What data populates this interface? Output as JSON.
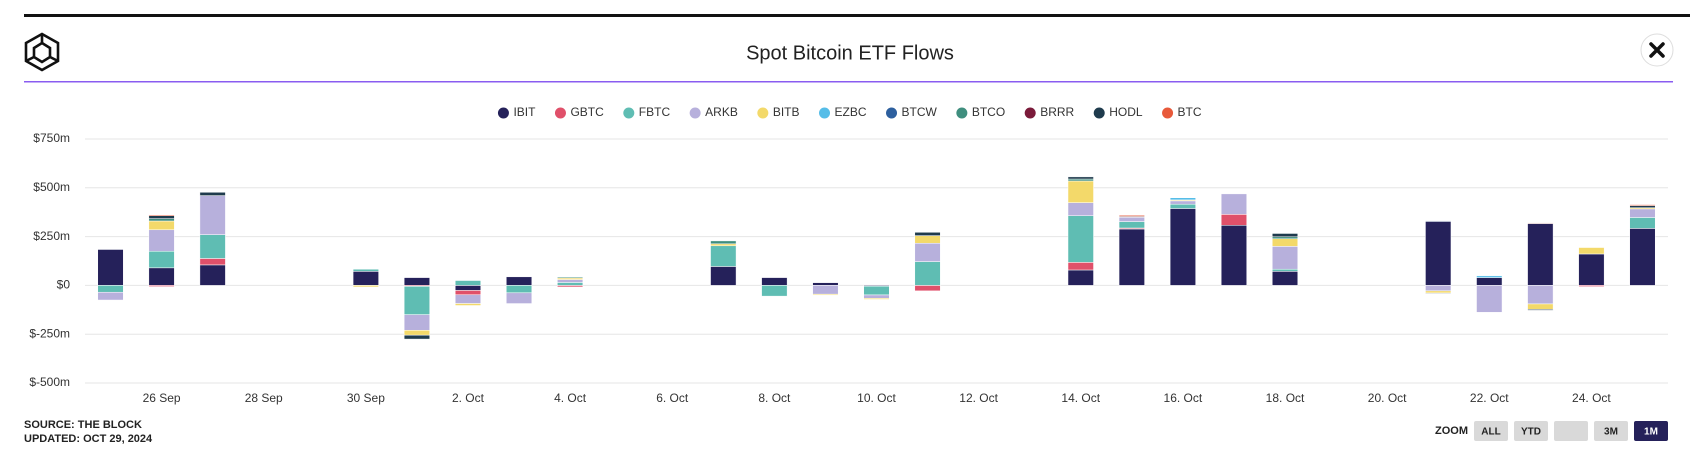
{
  "chart_data": {
    "type": "stacked-bar",
    "title": "Spot Bitcoin ETF Flows",
    "categories": [
      null,
      "26 Sep",
      null,
      "28 Sep",
      null,
      "30 Sep",
      null,
      "2. Oct",
      null,
      "4. Oct",
      null,
      "6. Oct",
      null,
      "8. Oct",
      null,
      "10. Oct",
      null,
      "12. Oct",
      null,
      "14. Oct",
      null,
      "16. Oct",
      null,
      "18. Oct",
      null,
      "20. Oct",
      null,
      "22. Oct",
      null,
      "24. Oct",
      null
    ],
    "series": [
      {
        "name": "IBIT",
        "color": "#25215a",
        "values": [
          184,
          90,
          105,
          null,
          null,
          72,
          40,
          -26,
          44,
          0,
          null,
          null,
          97,
          40,
          14,
          -4,
          0,
          null,
          null,
          79,
          289,
          394,
          308,
          72,
          null,
          null,
          328,
          40,
          317,
          161,
          292
        ]
      },
      {
        "name": "GBTC",
        "color": "#e0506a",
        "values": [
          0,
          -6,
          33,
          null,
          null,
          0,
          -5,
          -22,
          0,
          -8,
          null,
          null,
          0,
          0,
          0,
          0,
          -28,
          null,
          null,
          39,
          5,
          0,
          56,
          0,
          null,
          null,
          0,
          0,
          0,
          -6,
          0
        ]
      },
      {
        "name": "FBTC",
        "color": "#5fbdb3",
        "values": [
          -35,
          85,
          122,
          null,
          null,
          11,
          -145,
          25,
          -38,
          15,
          null,
          null,
          106,
          -55,
          0,
          -45,
          122,
          null,
          null,
          239,
          33,
          22,
          0,
          11,
          null,
          null,
          0,
          0,
          0,
          0,
          56
        ]
      },
      {
        "name": "ARKB",
        "color": "#b7b0dc",
        "values": [
          -40,
          110,
          200,
          null,
          null,
          0,
          -80,
          -45,
          -55,
          15,
          null,
          null,
          0,
          0,
          -45,
          -17,
          94,
          null,
          null,
          67,
          22,
          17,
          105,
          117,
          null,
          null,
          -28,
          -138,
          -95,
          0,
          44
        ]
      },
      {
        "name": "BITB",
        "color": "#f3d96a",
        "values": [
          0,
          45,
          0,
          null,
          null,
          -8,
          -25,
          -10,
          0,
          8,
          null,
          null,
          10,
          0,
          -5,
          -6,
          39,
          null,
          null,
          111,
          0,
          5,
          0,
          39,
          null,
          null,
          -11,
          0,
          -28,
          33,
          6
        ]
      },
      {
        "name": "EZBC",
        "color": "#55bde8",
        "values": [
          0,
          0,
          0,
          null,
          null,
          0,
          0,
          0,
          0,
          0,
          null,
          null,
          0,
          0,
          0,
          0,
          0,
          null,
          null,
          0,
          0,
          11,
          0,
          0,
          null,
          null,
          3,
          9,
          0,
          0,
          0
        ]
      },
      {
        "name": "BTCW",
        "color": "#2d5f9e",
        "values": [
          0,
          0,
          0,
          null,
          null,
          0,
          0,
          0,
          0,
          0,
          null,
          null,
          0,
          0,
          0,
          0,
          0,
          null,
          null,
          0,
          0,
          0,
          0,
          0,
          null,
          null,
          2,
          0,
          0,
          0,
          0
        ]
      },
      {
        "name": "BTCO",
        "color": "#3f8e7e",
        "values": [
          0,
          12,
          0,
          null,
          null,
          0,
          0,
          0,
          0,
          5,
          null,
          null,
          15,
          0,
          0,
          0,
          0,
          null,
          null,
          10,
          0,
          0,
          0,
          10,
          null,
          null,
          0,
          0,
          0,
          0,
          0
        ]
      },
      {
        "name": "BRRR",
        "color": "#7a1a3a",
        "values": [
          0,
          0,
          0,
          null,
          null,
          0,
          0,
          0,
          0,
          0,
          null,
          null,
          0,
          0,
          0,
          0,
          0,
          null,
          null,
          0,
          0,
          0,
          0,
          0,
          null,
          null,
          0,
          0,
          0,
          0,
          0
        ]
      },
      {
        "name": "HODL",
        "color": "#1f3b4d",
        "values": [
          0,
          15,
          17,
          null,
          null,
          0,
          -20,
          0,
          0,
          0,
          null,
          null,
          0,
          0,
          0,
          0,
          17,
          null,
          null,
          11,
          4,
          0,
          0,
          17,
          null,
          null,
          -3,
          0,
          -5,
          0,
          11
        ]
      },
      {
        "name": "BTC",
        "color": "#e8593a",
        "values": [
          0,
          5,
          0,
          null,
          null,
          0,
          0,
          0,
          0,
          0,
          null,
          null,
          0,
          0,
          0,
          0,
          0,
          null,
          null,
          0,
          6,
          0,
          0,
          0,
          null,
          null,
          0,
          0,
          3,
          0,
          5
        ]
      }
    ],
    "ylim": [
      -500,
      750
    ],
    "yticks": [
      {
        "value": -500,
        "label": "$-500m"
      },
      {
        "value": -250,
        "label": "$-250m"
      },
      {
        "value": 0,
        "label": "$0"
      },
      {
        "value": 250,
        "label": "$250m"
      },
      {
        "value": 500,
        "label": "$500m"
      },
      {
        "value": 750,
        "label": "$750m"
      }
    ],
    "grid": true,
    "legend": "top"
  },
  "source": "SOURCE: THE BLOCK",
  "updated": "UPDATED: OCT 29, 2024",
  "zoom": {
    "label": "ZOOM",
    "buttons": [
      "ALL",
      "YTD",
      "3M",
      "1M"
    ],
    "selected": "1M"
  }
}
